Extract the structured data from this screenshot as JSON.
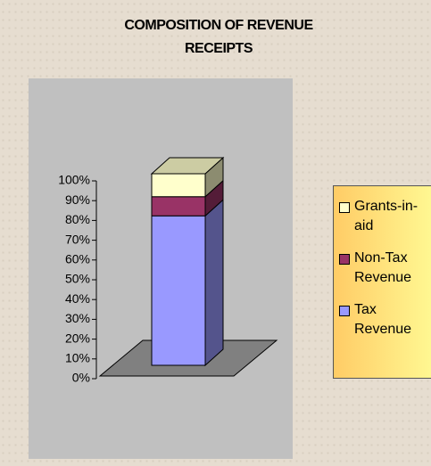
{
  "chart_data": {
    "type": "bar3d_stacked",
    "title": "COMPOSITION OF REVENUE RECEIPTS",
    "categories": [
      null
    ],
    "series": [
      {
        "name": "Tax Revenue",
        "color": "#9999ff",
        "values": [
          78
        ]
      },
      {
        "name": "Non-Tax Revenue",
        "color": "#993366",
        "values": [
          10
        ]
      },
      {
        "name": "Grants-in-aid",
        "color": "#ffffcc",
        "values": [
          12
        ]
      }
    ],
    "ylim": [
      0,
      100
    ],
    "yticks": [
      {
        "value": 0,
        "label": "0%"
      },
      {
        "value": 10,
        "label": "10%"
      },
      {
        "value": 20,
        "label": "20%"
      },
      {
        "value": 30,
        "label": "30%"
      },
      {
        "value": 40,
        "label": "40%"
      },
      {
        "value": 50,
        "label": "50%"
      },
      {
        "value": 60,
        "label": "60%"
      },
      {
        "value": 70,
        "label": "70%"
      },
      {
        "value": 80,
        "label": "80%"
      },
      {
        "value": 90,
        "label": "90%"
      },
      {
        "value": 100,
        "label": "100%"
      }
    ],
    "legend": "right"
  }
}
